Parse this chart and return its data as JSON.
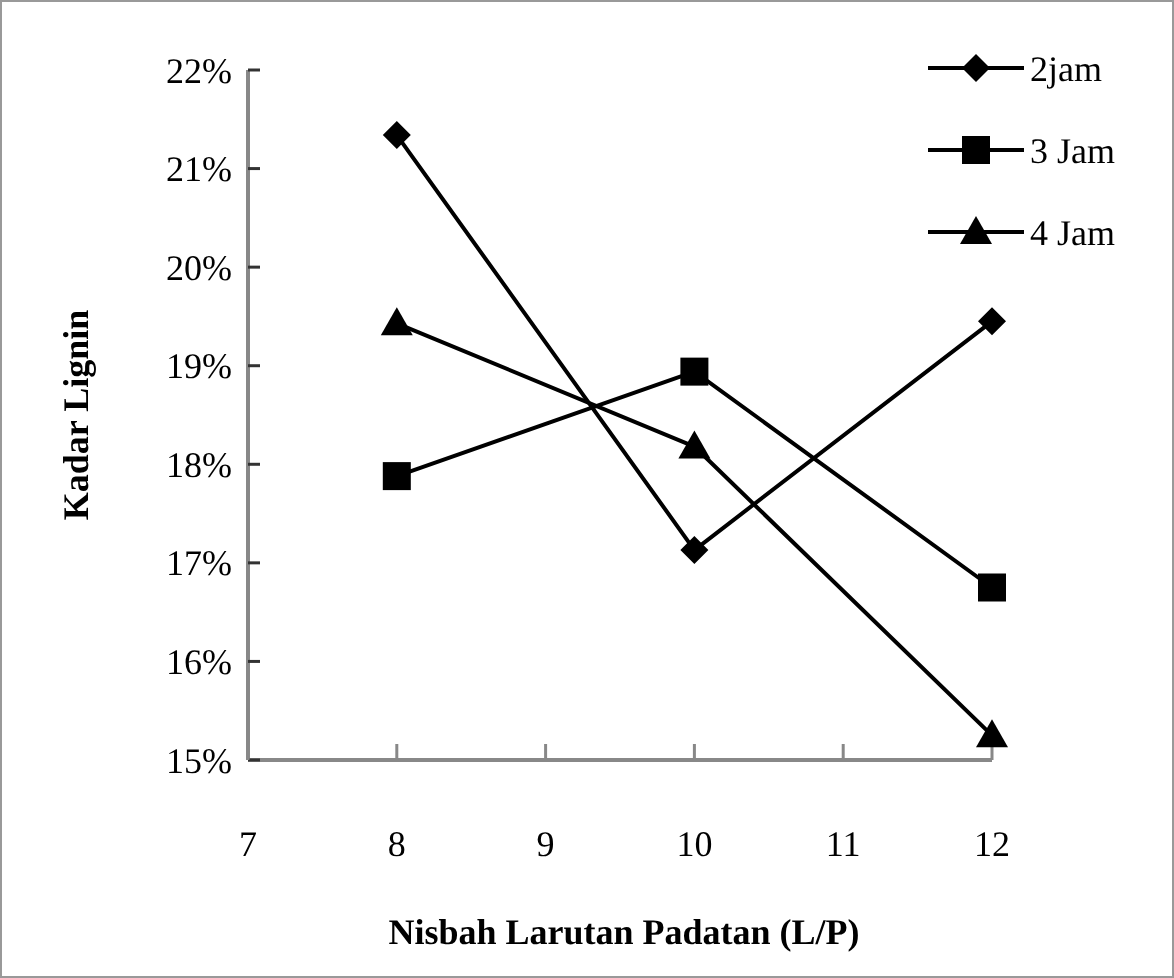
{
  "chart_data": {
    "type": "line",
    "xlabel": "Nisbah Larutan Padatan (L/P)",
    "ylabel": "Kadar Lignin",
    "x": [
      8,
      10,
      12
    ],
    "series": [
      {
        "name": "2jam",
        "color": "#000000",
        "values": [
          21.34,
          17.13,
          19.45
        ],
        "marker": "diamond"
      },
      {
        "name": "3 Jam",
        "color": "#000000",
        "values": [
          17.88,
          18.94,
          16.75
        ],
        "marker": "square"
      },
      {
        "name": "4 Jam",
        "color": "#000000",
        "values": [
          19.43,
          18.18,
          15.25
        ],
        "marker": "triangle"
      }
    ],
    "xlim": [
      7,
      12
    ],
    "xticks": [
      7,
      8,
      9,
      10,
      11,
      12
    ],
    "ylim": [
      15,
      22
    ],
    "yticks": [
      {
        "value": 15,
        "label": "15%"
      },
      {
        "value": 16,
        "label": "16%"
      },
      {
        "value": 17,
        "label": "17%"
      },
      {
        "value": 18,
        "label": "18%"
      },
      {
        "value": 19,
        "label": "19%"
      },
      {
        "value": 20,
        "label": "20%"
      },
      {
        "value": 21,
        "label": "21%"
      },
      {
        "value": 22,
        "label": "22%"
      }
    ],
    "grid": false,
    "legend": "top right",
    "line_style": "solid"
  }
}
